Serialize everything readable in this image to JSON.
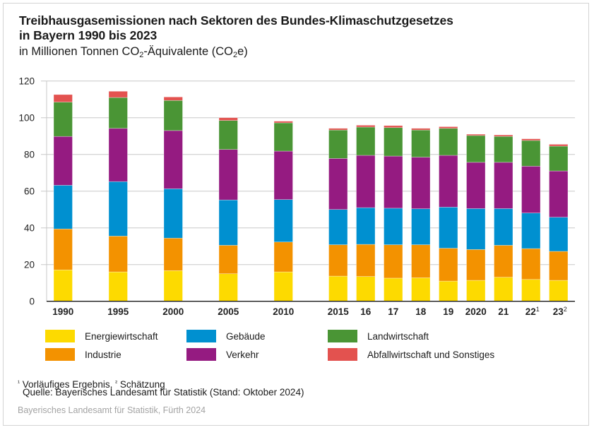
{
  "chart_data": {
    "type": "bar",
    "stacked": true,
    "title": "Treibhausgasemissionen nach Sektoren des Bundes-Klimaschutzgesetzes in Bayern 1990 bis 2023",
    "title_lines": [
      "Treibhausgasemissionen nach Sektoren des Bundes-Klimaschutzgesetzes",
      "in Bayern 1990 bis 2023"
    ],
    "subtitle": {
      "pre": "in Millionen Tonnen CO",
      "sub1": "2",
      "mid": "-Äquivalente (CO",
      "sub2": "2",
      "post": "e)"
    },
    "xlabel": "",
    "ylabel": "",
    "ylim": [
      0,
      120
    ],
    "yticks": [
      0,
      20,
      40,
      60,
      80,
      100,
      120
    ],
    "grid": true,
    "legend_position": "bottom",
    "categories": [
      "1990",
      "1995",
      "2000",
      "2005",
      "2010",
      "2015",
      "16",
      "17",
      "18",
      "19",
      "2020",
      "21",
      "22¹",
      "23²"
    ],
    "series": [
      {
        "name": "Energiewirtschaft",
        "color": "#FDDA00",
        "values": [
          17.1,
          16.0,
          16.7,
          15.0,
          16.0,
          13.7,
          13.5,
          12.6,
          12.8,
          11.0,
          11.4,
          13.1,
          11.9,
          11.4
        ]
      },
      {
        "name": "Industrie",
        "color": "#F39200",
        "values": [
          22.3,
          19.5,
          17.7,
          15.5,
          16.3,
          17.1,
          17.5,
          18.2,
          18.0,
          17.9,
          16.8,
          17.4,
          16.8,
          15.8
        ]
      },
      {
        "name": "Gebäude",
        "color": "#0090D0",
        "values": [
          23.8,
          29.7,
          26.9,
          24.7,
          23.1,
          19.2,
          20.0,
          19.9,
          19.6,
          22.4,
          22.3,
          20.0,
          19.4,
          18.6
        ]
      },
      {
        "name": "Verkehr",
        "color": "#951B81",
        "values": [
          26.6,
          29.0,
          31.7,
          27.5,
          26.4,
          27.8,
          28.5,
          28.4,
          28.1,
          28.2,
          25.2,
          25.2,
          25.5,
          25.2
        ]
      },
      {
        "name": "Landwirtschaft",
        "color": "#4A9535",
        "values": [
          18.7,
          16.8,
          16.4,
          15.8,
          15.4,
          15.5,
          15.4,
          15.5,
          14.8,
          14.7,
          14.6,
          14.1,
          14.0,
          13.5
        ]
      },
      {
        "name": "Abfallwirtschaft und Sonstiges",
        "color": "#E3524F",
        "values": [
          4.1,
          3.4,
          1.9,
          1.5,
          0.9,
          0.9,
          1.0,
          1.1,
          0.9,
          0.9,
          0.7,
          0.8,
          0.9,
          1.0
        ]
      }
    ],
    "legend_order": [
      "Energiewirtschaft",
      "Gebäude",
      "Landwirtschaft",
      "Industrie",
      "Verkehr",
      "Abfallwirtschaft und Sonstiges"
    ]
  },
  "footnotes": {
    "sup1": "¹",
    "note1": " Vorläufiges Ergebnis, ",
    "sup2": "²",
    "note2": " Schätzung",
    "source": "Quelle: Bayerisches Landesamt für Statistik (Stand: Oktober 2024)"
  },
  "credit": "Bayerisches Landesamt für Statistik, Fürth 2024"
}
